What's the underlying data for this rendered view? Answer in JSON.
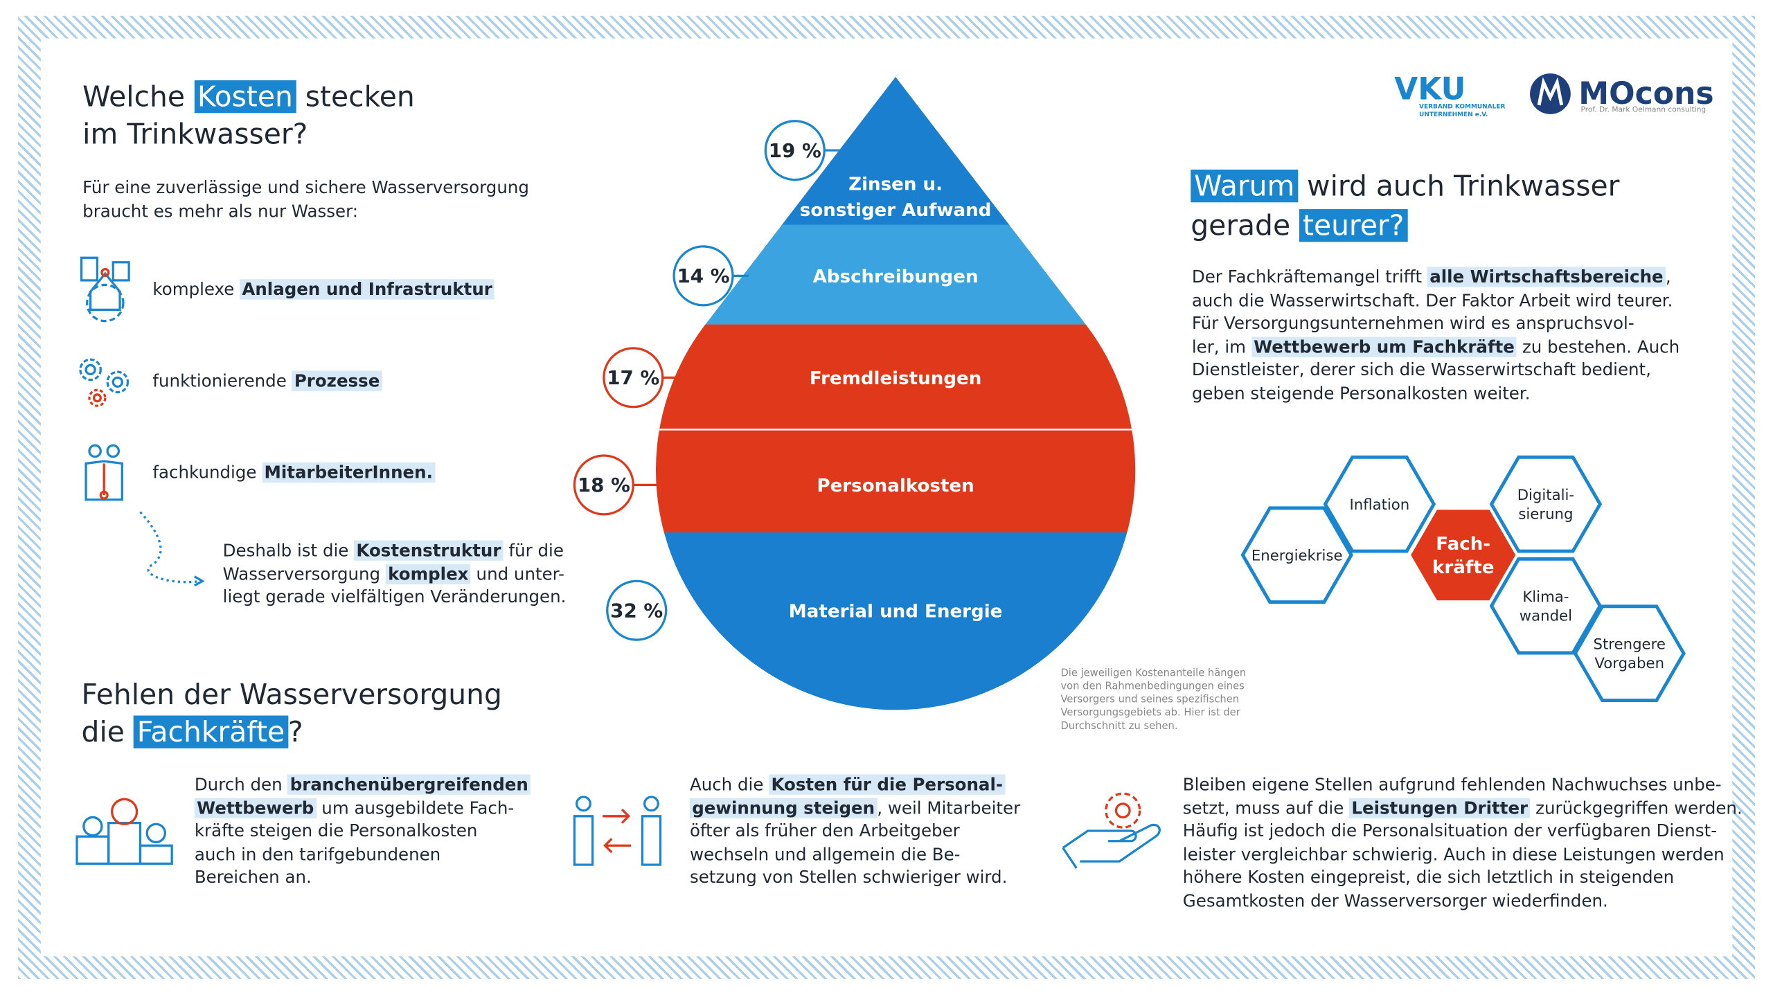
{
  "intro": {
    "title": [
      [
        "Welche ",
        {
          "highlight": "Kosten"
        },
        " stecken"
      ],
      [
        "im Trinkwasser?"
      ]
    ],
    "text": [
      [
        "Für eine zuverlässige und sichere Wasserversorgung"
      ],
      [
        "braucht es mehr als nur Wasser:"
      ]
    ],
    "items": [
      [
        [
          "komplexe ",
          {
            "highlight": "Anlagen und Infrastruktur"
          }
        ]
      ],
      [
        [
          "funktionierende ",
          {
            "highlight": "Prozesse"
          }
        ]
      ],
      [
        [
          "fachkundige ",
          {
            "highlight": "MitarbeiterInnen."
          }
        ]
      ]
    ],
    "conclusion": [
      [
        "Deshalb ist die ",
        {
          "highlight": "Kostenstruktur"
        },
        " für die"
      ],
      [
        "Wasserversorgung ",
        {
          "highlight": "komplex"
        },
        " und unter-"
      ],
      [
        "liegt gerade vielfältigen Veränderungen."
      ]
    ]
  },
  "drop": {
    "segments": [
      {
        "label": [
          "Zinsen u.",
          "sonstiger Aufwand"
        ],
        "share": "19 %"
      },
      {
        "label": [
          "Abschreibungen"
        ],
        "share": "14 %"
      },
      {
        "label": [
          "Fremdleistungen"
        ],
        "share": "17 %"
      },
      {
        "label": [
          "Personalkosten"
        ],
        "share": "18 %"
      },
      {
        "label": [
          "Material und Energie"
        ],
        "share": "32 %"
      }
    ],
    "note": [
      "Die jeweiligen Kostenanteile hängen",
      "von den Rahmenbedingungen eines",
      "Versorgers und seines spezifischen",
      "Versorgungsgebiets ab. Hier ist der",
      "Durchschnitt zu sehen."
    ]
  },
  "logos": {
    "vku": {
      "name": "VKU",
      "subtitle": [
        "VERBAND KOMMUNALER",
        "UNTERNEHMEN e.V."
      ]
    },
    "mocons": {
      "name": "MOcons",
      "subtitle": "Prof. Dr. Mark Oelmann consulting"
    }
  },
  "why": {
    "title": [
      [
        {
          "highlight": "Warum"
        },
        " wird auch Trinkwasser"
      ],
      [
        "gerade ",
        {
          "highlight": "teurer?"
        }
      ]
    ],
    "text": [
      [
        "Der Fachkräftemangel trifft ",
        {
          "highlight": "alle Wirtschaftsbereiche"
        },
        ","
      ],
      [
        "auch die Wasserwirtschaft. Der Faktor Arbeit wird teurer."
      ],
      [
        "Für Versorgungsunternehmen wird es anspruchsvol-"
      ],
      [
        "ler, im ",
        {
          "highlight": "Wettbewerb um Fachkräfte"
        },
        " zu bestehen. Auch"
      ],
      [
        "Dienstleister, derer sich die Wasserwirtschaft bedient,"
      ],
      [
        "geben steigende Personalkosten weiter."
      ]
    ],
    "factors": [
      [
        "Energiekrise"
      ],
      [
        "Inflation"
      ],
      [
        "Fach-",
        "kräfte"
      ],
      [
        "Digitali-",
        "sierung"
      ],
      [
        "Klima-",
        "wandel"
      ],
      [
        "Strengere",
        "Vorgaben"
      ]
    ]
  },
  "shortage": {
    "title": [
      [
        "Fehlen der Wasserversorgung"
      ],
      [
        "die ",
        {
          "highlight": "Fachkräfte"
        },
        "?"
      ]
    ],
    "columns": [
      [
        [
          "Durch den ",
          {
            "highlight": "branchenübergreifenden"
          }
        ],
        [
          {
            "highlight": "Wettbewerb"
          },
          " um ausgebildete Fach-"
        ],
        [
          "kräfte steigen die Personalkosten"
        ],
        [
          "auch in den tarifgebundenen"
        ],
        [
          "Bereichen an."
        ]
      ],
      [
        [
          "Auch die ",
          {
            "highlight": "Kosten für die Personal-"
          }
        ],
        [
          {
            "highlight": "gewinnung steigen"
          },
          ", weil Mitarbeiter"
        ],
        [
          "öfter als früher den Arbeitgeber"
        ],
        [
          "wechseln und allgemein die Be-"
        ],
        [
          "setzung von Stellen schwieriger wird."
        ]
      ],
      [
        [
          "Bleiben eigene Stellen aufgrund fehlenden Nachwuchses unbe-"
        ],
        [
          "setzt, muss auf die ",
          {
            "highlight": "Leistungen Dritter"
          },
          " zurückgegriffen werden."
        ],
        [
          "Häufig ist jedoch die Personalsituation der verfügbaren Dienst-"
        ],
        [
          "leister vergleichbar schwierig. Auch in diese Leistungen werden"
        ],
        [
          "höhere Kosten eingepreist, die sich letztlich in steigenden"
        ],
        [
          "Gesamtkosten der Wasserversorger wiederfinden."
        ]
      ]
    ]
  }
}
